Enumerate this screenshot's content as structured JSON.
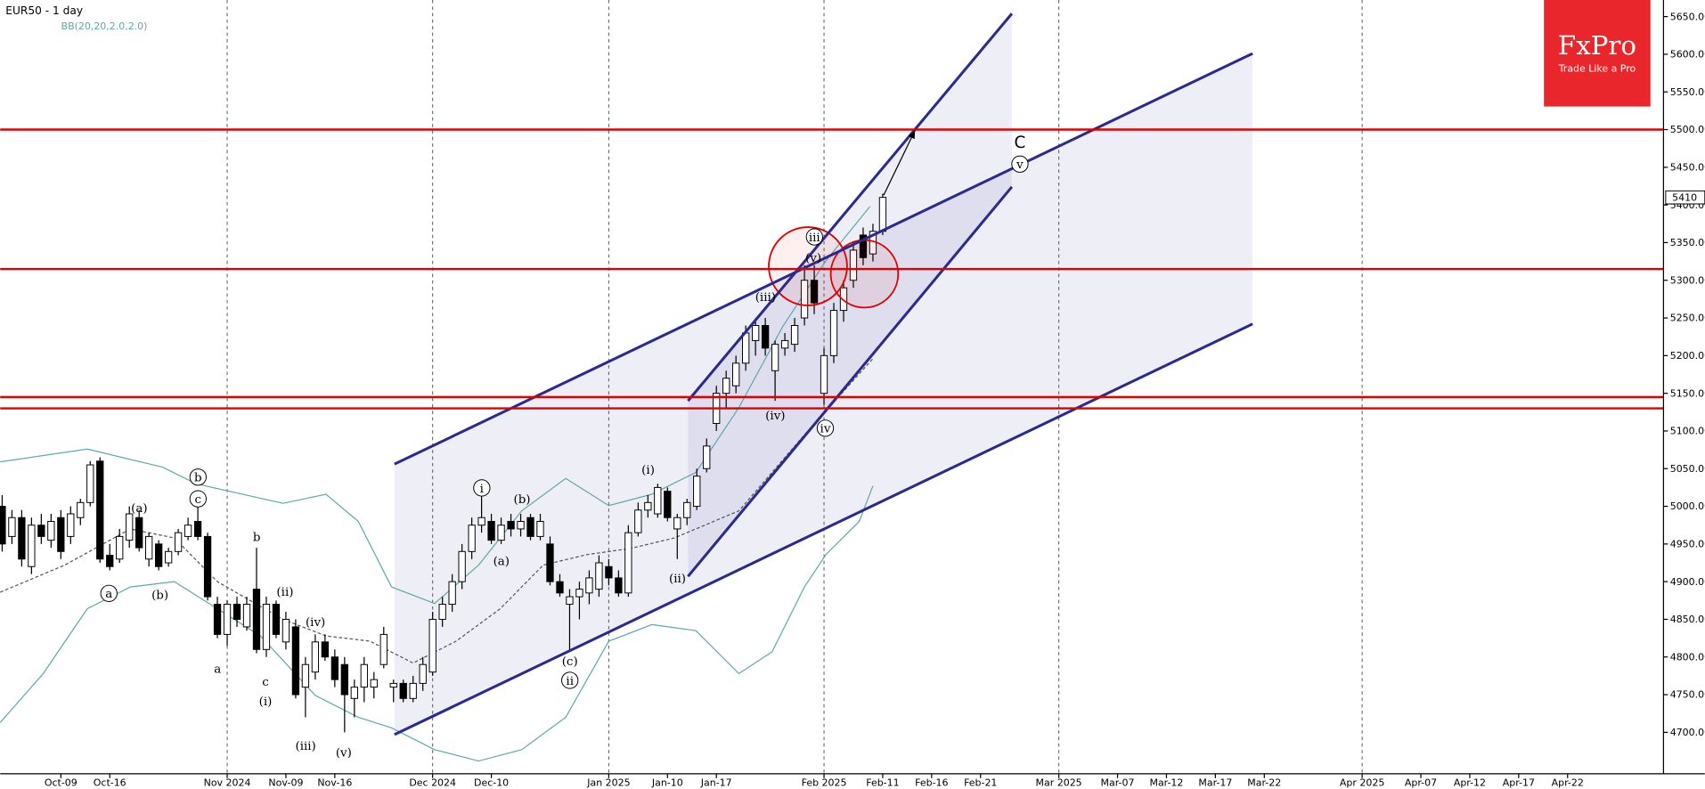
{
  "chart_data": {
    "type": "candlestick",
    "title": "EUR50 - 1 day",
    "indicator": "BB(20,20,2.0,2.0)",
    "logo": {
      "name": "FxPro",
      "tagline": "Trade Like a Pro",
      "color": "#e8262b"
    },
    "xlim": [
      -23.2,
      146.8
    ],
    "ylim": [
      4645,
      5672
    ],
    "xticks": [
      {
        "value": -17,
        "label": "Oct-09"
      },
      {
        "value": -12,
        "label": "Oct-16"
      },
      {
        "value": 0,
        "label": "Nov 2024"
      },
      {
        "value": 6,
        "label": "Nov-09"
      },
      {
        "value": 11,
        "label": "Nov-16"
      },
      {
        "value": 21,
        "label": "Dec 2024"
      },
      {
        "value": 27,
        "label": "Dec-10"
      },
      {
        "value": 39,
        "label": "Jan 2025"
      },
      {
        "value": 45,
        "label": "Jan-10"
      },
      {
        "value": 50,
        "label": "Jan-17"
      },
      {
        "value": 61,
        "label": "Feb 2025"
      },
      {
        "value": 67,
        "label": "Feb-11"
      },
      {
        "value": 72,
        "label": "Feb-16"
      },
      {
        "value": 77,
        "label": "Feb-21"
      },
      {
        "value": 85,
        "label": "Mar 2025"
      },
      {
        "value": 91,
        "label": "Mar-07"
      },
      {
        "value": 96,
        "label": "Mar-12"
      },
      {
        "value": 101,
        "label": "Mar-17"
      },
      {
        "value": 106,
        "label": "Mar-22"
      },
      {
        "value": 116,
        "label": "Apr 2025"
      },
      {
        "value": 122,
        "label": "Apr-07"
      },
      {
        "value": 127,
        "label": "Apr-12"
      },
      {
        "value": 132,
        "label": "Apr-17"
      },
      {
        "value": 137,
        "label": "Apr-22"
      }
    ],
    "xgrid_at": [
      0,
      21,
      39,
      61,
      85,
      116
    ],
    "yticks": [
      {
        "value": 4700,
        "label": "4700.00"
      },
      {
        "value": 4750,
        "label": "4750.00"
      },
      {
        "value": 4800,
        "label": "4800.00"
      },
      {
        "value": 4850,
        "label": "4850.00"
      },
      {
        "value": 4900,
        "label": "4900.00"
      },
      {
        "value": 4950,
        "label": "4950.00"
      },
      {
        "value": 5000,
        "label": "5000.00"
      },
      {
        "value": 5050,
        "label": "5050.00"
      },
      {
        "value": 5100,
        "label": "5100.00"
      },
      {
        "value": 5150,
        "label": "5150.00"
      },
      {
        "value": 5200,
        "label": "5200.00"
      },
      {
        "value": 5250,
        "label": "5250.00"
      },
      {
        "value": 5300,
        "label": "5300.00"
      },
      {
        "value": 5350,
        "label": "5350.00"
      },
      {
        "value": 5400,
        "label": "5400.00"
      },
      {
        "value": 5450,
        "label": "5450.00"
      },
      {
        "value": 5500,
        "label": "5500.00"
      },
      {
        "value": 5550,
        "label": "5550.00"
      },
      {
        "value": 5600,
        "label": "5600.00"
      },
      {
        "value": 5650,
        "label": "5650.00"
      }
    ],
    "last_price": 5410,
    "x": [
      -23,
      -22,
      -21,
      -20,
      -19,
      -18,
      -17,
      -16,
      -15,
      -14,
      -13,
      -12,
      -11,
      -10,
      -9,
      -8,
      -7,
      -6,
      -5,
      -4,
      -3,
      -2,
      -1,
      0,
      1,
      2,
      3,
      4,
      5,
      6,
      7,
      8,
      9,
      10,
      11,
      12,
      13,
      14,
      15,
      16,
      17,
      18,
      19,
      20,
      21,
      22,
      23,
      24,
      25,
      26,
      27,
      28,
      29,
      30,
      31,
      32,
      33,
      34,
      35,
      36,
      37,
      38,
      39,
      40,
      41,
      42,
      43,
      44,
      45,
      46,
      47,
      48,
      49,
      50,
      51,
      52,
      53,
      54,
      55,
      56,
      57,
      58,
      59,
      60,
      61,
      62,
      63,
      64,
      65,
      66,
      67
    ],
    "ohlc": [
      [
        5000,
        5015,
        4940,
        4950
      ],
      [
        4960,
        4995,
        4950,
        4985
      ],
      [
        4985,
        4995,
        4920,
        4930
      ],
      [
        4920,
        4985,
        4910,
        4975
      ],
      [
        4975,
        4990,
        4950,
        4960
      ],
      [
        4955,
        4990,
        4945,
        4980
      ],
      [
        4985,
        4995,
        4930,
        4940
      ],
      [
        4960,
        5000,
        4950,
        4990
      ],
      [
        4985,
        5010,
        4975,
        5005
      ],
      [
        5005,
        5060,
        5000,
        5055
      ],
      [
        5060,
        5065,
        4925,
        4930
      ],
      [
        4935,
        4950,
        4915,
        4920
      ],
      [
        4930,
        4970,
        4925,
        4960
      ],
      [
        4955,
        5000,
        4945,
        4990
      ],
      [
        4985,
        4995,
        4940,
        4945
      ],
      [
        4930,
        4965,
        4920,
        4960
      ],
      [
        4950,
        4955,
        4915,
        4920
      ],
      [
        4925,
        4945,
        4920,
        4940
      ],
      [
        4940,
        4970,
        4935,
        4965
      ],
      [
        4960,
        4985,
        4955,
        4975
      ],
      [
        4980,
        5000,
        4955,
        4960
      ],
      [
        4960,
        4965,
        4875,
        4880
      ],
      [
        4870,
        4880,
        4825,
        4830
      ],
      [
        4830,
        4875,
        4815,
        4870
      ],
      [
        4870,
        4880,
        4840,
        4850
      ],
      [
        4840,
        4880,
        4835,
        4870
      ],
      [
        4890,
        4945,
        4805,
        4810
      ],
      [
        4810,
        4880,
        4800,
        4870
      ],
      [
        4870,
        4875,
        4825,
        4830
      ],
      [
        4820,
        4860,
        4810,
        4850
      ],
      [
        4840,
        4850,
        4745,
        4750
      ],
      [
        4760,
        4800,
        4720,
        4790
      ],
      [
        4780,
        4830,
        4770,
        4820
      ],
      [
        4820,
        4830,
        4795,
        4800
      ],
      [
        4800,
        4810,
        4760,
        4770
      ],
      [
        4790,
        4800,
        4700,
        4750
      ],
      [
        4745,
        4770,
        4720,
        4760
      ],
      [
        4760,
        4800,
        4740,
        4790
      ],
      [
        4760,
        4780,
        4745,
        4770
      ],
      [
        4790,
        4840,
        4785,
        4830
      ],
      [
        4760,
        4770,
        4740,
        4765
      ],
      [
        4765,
        4770,
        4740,
        4745
      ],
      [
        4745,
        4775,
        4740,
        4765
      ],
      [
        4765,
        4800,
        4755,
        4790
      ],
      [
        4780,
        4860,
        4775,
        4850
      ],
      [
        4850,
        4880,
        4840,
        4870
      ],
      [
        4870,
        4910,
        4860,
        4900
      ],
      [
        4900,
        4950,
        4890,
        4940
      ],
      [
        4940,
        4985,
        4930,
        4975
      ],
      [
        4975,
        5015,
        4965,
        4985
      ],
      [
        4980,
        4990,
        4950,
        4955
      ],
      [
        4955,
        4985,
        4950,
        4975
      ],
      [
        4980,
        4990,
        4960,
        4970
      ],
      [
        4970,
        4990,
        4960,
        4980
      ],
      [
        4985,
        4990,
        4955,
        4960
      ],
      [
        4960,
        4990,
        4955,
        4980
      ],
      [
        4950,
        4960,
        4895,
        4900
      ],
      [
        4900,
        4910,
        4880,
        4885
      ],
      [
        4870,
        4890,
        4810,
        4880
      ],
      [
        4880,
        4900,
        4850,
        4890
      ],
      [
        4885,
        4915,
        4870,
        4905
      ],
      [
        4890,
        4935,
        4880,
        4925
      ],
      [
        4920,
        4930,
        4895,
        4905
      ],
      [
        4905,
        4915,
        4880,
        4885
      ],
      [
        4885,
        4975,
        4880,
        4965
      ],
      [
        4965,
        5005,
        4960,
        4995
      ],
      [
        4995,
        5015,
        4985,
        5005
      ],
      [
        4990,
        5030,
        4985,
        5025
      ],
      [
        5020,
        5025,
        4980,
        4985
      ],
      [
        4970,
        4990,
        4930,
        4985
      ],
      [
        4985,
        5010,
        4975,
        5005
      ],
      [
        5000,
        5050,
        4995,
        5040
      ],
      [
        5050,
        5090,
        5045,
        5080
      ],
      [
        5110,
        5160,
        5100,
        5150
      ],
      [
        5150,
        5180,
        5130,
        5170
      ],
      [
        5160,
        5200,
        5150,
        5190
      ],
      [
        5190,
        5240,
        5180,
        5230
      ],
      [
        5220,
        5250,
        5200,
        5240
      ],
      [
        5240,
        5250,
        5200,
        5210
      ],
      [
        5180,
        5220,
        5140,
        5215
      ],
      [
        5210,
        5230,
        5200,
        5220
      ],
      [
        5215,
        5250,
        5205,
        5240
      ],
      [
        5250,
        5320,
        5240,
        5300
      ],
      [
        5300,
        5320,
        5255,
        5270
      ],
      [
        5150,
        5210,
        5135,
        5200
      ],
      [
        5200,
        5270,
        5190,
        5260
      ],
      [
        5260,
        5300,
        5245,
        5290
      ],
      [
        5300,
        5350,
        5290,
        5340
      ],
      [
        5360,
        5370,
        5320,
        5330
      ],
      [
        5335,
        5375,
        5325,
        5365
      ],
      [
        5365,
        5415,
        5360,
        5410
      ]
    ],
    "bands": [
      {
        "color": "#5fa8a8",
        "x": [
          -23.2,
          -14.3,
          -6.6,
          -3.2,
          5.7,
          10.1,
          13.4,
          16.8,
          21.2,
          25.7,
          30.1,
          34.6,
          39,
          43.4,
          47.9,
          52.3,
          56.8,
          61.2,
          65.7
        ],
        "values": [
          5059,
          5076,
          5052,
          5030,
          5004,
          5016,
          4980,
          4893,
          4871,
          4922,
          4994,
          5037,
          5001,
          5016,
          5045,
          5131,
          5239,
          5326,
          5398
        ]
      },
      {
        "color": "#555555",
        "x": [
          -23.2,
          -16.6,
          -9.9,
          -5.4,
          -1,
          5.7,
          10.1,
          14.6,
          19,
          23.4,
          27.9,
          32.3,
          36.8,
          41.2,
          45.7,
          52.3,
          59,
          66
        ],
        "values": [
          4886,
          4922,
          4970,
          4958,
          4900,
          4850,
          4828,
          4821,
          4792,
          4821,
          4864,
          4922,
          4936,
          4944,
          4958,
          4994,
          5095,
          5196
        ]
      },
      {
        "color": "#5fa8a8",
        "x": [
          -23.2,
          -18.8,
          -14.3,
          -9.9,
          -5.4,
          -1,
          3.4,
          9,
          13.4,
          16.8,
          21.2,
          25.7,
          30.1,
          34.6,
          39,
          43.4,
          47.9,
          52.3,
          55.7,
          59,
          61.2,
          64.6,
          66
        ],
        "values": [
          4713,
          4778,
          4864,
          4893,
          4900,
          4864,
          4828,
          4749,
          4720,
          4706,
          4677,
          4662,
          4677,
          4720,
          4821,
          4843,
          4835,
          4778,
          4807,
          4893,
          4936,
          4980,
          5027
        ]
      }
    ],
    "levels": [
      5500,
      5315,
      5145,
      5130
    ],
    "level_color": "#e00000",
    "channel_color": "#2b2b8c",
    "channels": [
      {
        "x": [
          17.1,
          104.8
        ],
        "upper": [
          5056,
          5601
        ],
        "lower": [
          4697,
          5242
        ]
      },
      {
        "x": [
          47.1,
          80.2
        ],
        "upper": [
          5140,
          5654
        ],
        "lower": [
          4907,
          5424
        ]
      }
    ],
    "arrow": {
      "x": [
        67.1,
        70.3
      ],
      "values": [
        5413,
        5499
      ]
    },
    "wave_labels": [
      "(a)",
      "a",
      "b",
      "c",
      "(b)",
      "b",
      "a",
      "c",
      "(i)",
      "(ii)",
      "(iv)",
      "(iii)",
      "(v)",
      "i",
      "(a)",
      "(b)",
      "(c)",
      "ii",
      "(i)",
      "(ii)",
      "(iii)",
      "(iv)",
      "(v)",
      "iii",
      "iv",
      "C",
      "v"
    ]
  }
}
